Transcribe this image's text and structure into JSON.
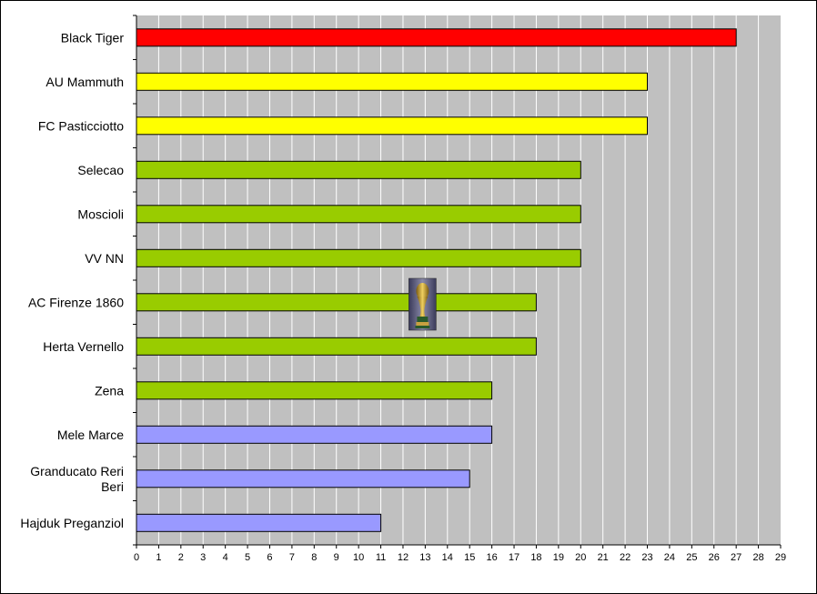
{
  "chart_data": {
    "type": "bar",
    "orientation": "horizontal",
    "categories": [
      [
        "Black Tiger"
      ],
      [
        "AU Mammuth"
      ],
      [
        "FC Pasticciotto"
      ],
      [
        "Selecao"
      ],
      [
        "Moscioli"
      ],
      [
        "VV NN"
      ],
      [
        "AC Firenze 1860"
      ],
      [
        "Herta Vernello"
      ],
      [
        "Zena"
      ],
      [
        "Mele Marce"
      ],
      [
        "Granducato Reri",
        "Beri"
      ],
      [
        "Hajduk Preganziol"
      ]
    ],
    "values": [
      27,
      23,
      23,
      20,
      20,
      20,
      18,
      18,
      16,
      16,
      15,
      11
    ],
    "bar_colors": [
      "#ff0000",
      "#ffff00",
      "#ffff00",
      "#99cc00",
      "#99cc00",
      "#99cc00",
      "#99cc00",
      "#99cc00",
      "#99cc00",
      "#9999ff",
      "#9999ff",
      "#9999ff"
    ],
    "x_ticks": [
      "0",
      "1",
      "2",
      "3",
      "4",
      "5",
      "6",
      "7",
      "8",
      "9",
      "10",
      "11",
      "12",
      "13",
      "14",
      "15",
      "16",
      "17",
      "18",
      "19",
      "20",
      "21",
      "22",
      "23",
      "24",
      "25",
      "26",
      "27",
      "28",
      "29"
    ],
    "xlim": [
      0,
      29
    ],
    "grid": "vertical",
    "plot_background": "#c0c0c0",
    "bar_border": "#000000",
    "title": "",
    "xlabel": "",
    "ylabel": "",
    "legend": "none",
    "image_icon": "world-cup-trophy-icon",
    "image_icon_at_value": 13
  }
}
